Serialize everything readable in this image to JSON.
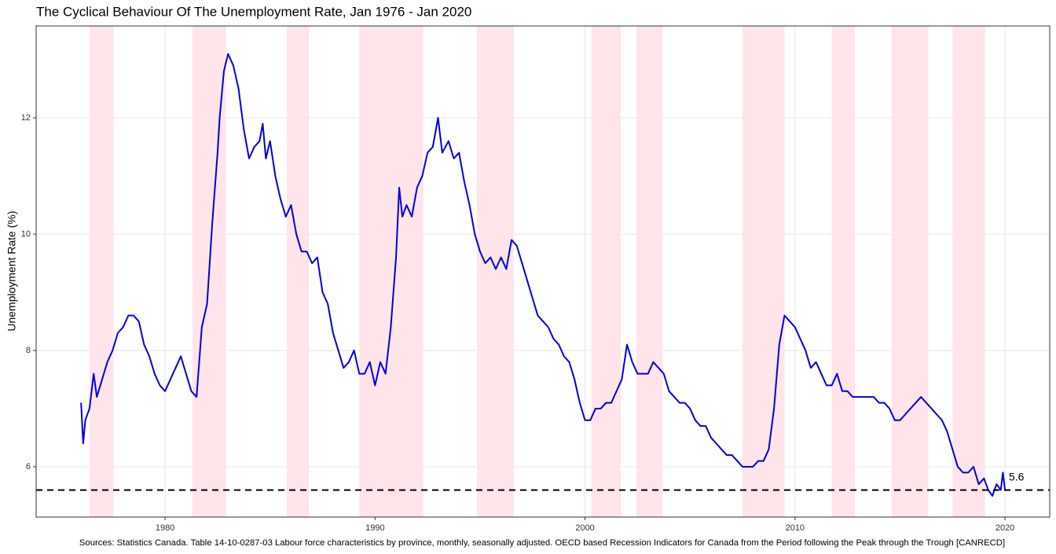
{
  "chart_data": {
    "type": "line",
    "title": "The Cyclical Behaviour Of The Unemployment Rate, Jan 1976 - Jan 2020",
    "y_label": "Unemployment Rate (%)",
    "caption": "Sources: Statistics Canada. Table 14-10-0287-03 Labour force characteristics by province, monthly, seasonally adjusted. OECD based Recession Indicators for Canada from the Period following the Peak through the Trough [CANRECD]",
    "color": "#0000dd",
    "x": [
      1976.0,
      1976.1,
      1976.2,
      1976.4,
      1976.6,
      1976.75,
      1977.0,
      1977.25,
      1977.5,
      1977.75,
      1978.0,
      1978.25,
      1978.5,
      1978.75,
      1979.0,
      1979.25,
      1979.5,
      1979.75,
      1980.0,
      1980.25,
      1980.5,
      1980.75,
      1981.0,
      1981.25,
      1981.5,
      1981.75,
      1982.0,
      1982.25,
      1982.5,
      1982.6,
      1982.8,
      1983.0,
      1983.25,
      1983.5,
      1983.75,
      1984.0,
      1984.25,
      1984.5,
      1984.65,
      1984.8,
      1985.0,
      1985.25,
      1985.5,
      1985.75,
      1986.0,
      1986.25,
      1986.5,
      1986.75,
      1987.0,
      1987.25,
      1987.5,
      1987.75,
      1988.0,
      1988.25,
      1988.5,
      1988.75,
      1989.0,
      1989.25,
      1989.5,
      1989.75,
      1990.0,
      1990.25,
      1990.5,
      1990.75,
      1991.0,
      1991.15,
      1991.3,
      1991.5,
      1991.75,
      1992.0,
      1992.25,
      1992.5,
      1992.75,
      1993.0,
      1993.2,
      1993.5,
      1993.75,
      1994.0,
      1994.25,
      1994.5,
      1994.75,
      1995.0,
      1995.25,
      1995.5,
      1995.75,
      1996.0,
      1996.25,
      1996.5,
      1996.75,
      1997.0,
      1997.25,
      1997.5,
      1997.75,
      1998.0,
      1998.25,
      1998.5,
      1998.75,
      1999.0,
      1999.25,
      1999.5,
      1999.75,
      2000.0,
      2000.25,
      2000.5,
      2000.75,
      2001.0,
      2001.25,
      2001.5,
      2001.75,
      2002.0,
      2002.25,
      2002.5,
      2002.75,
      2003.0,
      2003.25,
      2003.5,
      2003.75,
      2004.0,
      2004.25,
      2004.5,
      2004.75,
      2005.0,
      2005.25,
      2005.5,
      2005.75,
      2006.0,
      2006.25,
      2006.5,
      2006.75,
      2007.0,
      2007.25,
      2007.5,
      2007.75,
      2008.0,
      2008.25,
      2008.5,
      2008.75,
      2009.0,
      2009.25,
      2009.5,
      2009.75,
      2010.0,
      2010.25,
      2010.5,
      2010.75,
      2011.0,
      2011.25,
      2011.5,
      2011.75,
      2012.0,
      2012.25,
      2012.5,
      2012.75,
      2013.0,
      2013.25,
      2013.5,
      2013.75,
      2014.0,
      2014.25,
      2014.5,
      2014.75,
      2015.0,
      2015.25,
      2015.5,
      2015.75,
      2016.0,
      2016.25,
      2016.5,
      2016.75,
      2017.0,
      2017.25,
      2017.5,
      2017.75,
      2018.0,
      2018.25,
      2018.5,
      2018.75,
      2019.0,
      2019.2,
      2019.4,
      2019.6,
      2019.8,
      2019.9,
      2020.0
    ],
    "values": [
      7.1,
      6.4,
      6.8,
      7.0,
      7.6,
      7.2,
      7.5,
      7.8,
      8.0,
      8.3,
      8.4,
      8.6,
      8.6,
      8.5,
      8.1,
      7.9,
      7.6,
      7.4,
      7.3,
      7.5,
      7.7,
      7.9,
      7.6,
      7.3,
      7.2,
      8.4,
      8.8,
      10.2,
      11.4,
      12.0,
      12.8,
      13.1,
      12.9,
      12.5,
      11.8,
      11.3,
      11.5,
      11.6,
      11.9,
      11.3,
      11.6,
      11.0,
      10.6,
      10.3,
      10.5,
      10.0,
      9.7,
      9.7,
      9.5,
      9.6,
      9.0,
      8.8,
      8.3,
      8.0,
      7.7,
      7.8,
      8.0,
      7.6,
      7.6,
      7.8,
      7.4,
      7.8,
      7.6,
      8.4,
      9.6,
      10.8,
      10.3,
      10.5,
      10.3,
      10.8,
      11.0,
      11.4,
      11.5,
      12.0,
      11.4,
      11.6,
      11.3,
      11.4,
      10.9,
      10.5,
      10.0,
      9.7,
      9.5,
      9.6,
      9.4,
      9.6,
      9.4,
      9.9,
      9.8,
      9.5,
      9.2,
      8.9,
      8.6,
      8.5,
      8.4,
      8.2,
      8.1,
      7.9,
      7.8,
      7.5,
      7.1,
      6.8,
      6.8,
      7.0,
      7.0,
      7.1,
      7.1,
      7.3,
      7.5,
      8.1,
      7.8,
      7.6,
      7.6,
      7.6,
      7.8,
      7.7,
      7.6,
      7.3,
      7.2,
      7.1,
      7.1,
      7.0,
      6.8,
      6.7,
      6.7,
      6.5,
      6.4,
      6.3,
      6.2,
      6.2,
      6.1,
      6.0,
      6.0,
      6.0,
      6.1,
      6.1,
      6.3,
      7.0,
      8.1,
      8.6,
      8.5,
      8.4,
      8.2,
      8.0,
      7.7,
      7.8,
      7.6,
      7.4,
      7.4,
      7.6,
      7.3,
      7.3,
      7.2,
      7.2,
      7.2,
      7.2,
      7.2,
      7.1,
      7.1,
      7.0,
      6.8,
      6.8,
      6.9,
      7.0,
      7.1,
      7.2,
      7.1,
      7.0,
      6.9,
      6.8,
      6.6,
      6.3,
      6.0,
      5.9,
      5.9,
      6.0,
      5.7,
      5.8,
      5.6,
      5.5,
      5.7,
      5.6,
      5.9,
      5.6
    ],
    "recessions": [
      [
        1976.4,
        1977.55
      ],
      [
        1981.3,
        1982.9
      ],
      [
        1985.8,
        1986.85
      ],
      [
        1989.25,
        1992.3
      ],
      [
        1994.85,
        1996.6
      ],
      [
        2000.3,
        2001.7
      ],
      [
        2002.45,
        2003.7
      ],
      [
        2007.5,
        2009.5
      ],
      [
        2011.75,
        2012.85
      ],
      [
        2014.6,
        2016.35
      ],
      [
        2017.5,
        2019.05
      ]
    ],
    "recession_color": "#ffe4e9",
    "reference_line": 5.6,
    "xlim": [
      1973.86,
      2022.13
    ],
    "xticks": [
      1980,
      1990,
      2000,
      2010,
      2020
    ],
    "ylim": [
      5.135,
      13.58
    ],
    "yticks": [
      6,
      8,
      10,
      12
    ],
    "grid": true
  }
}
